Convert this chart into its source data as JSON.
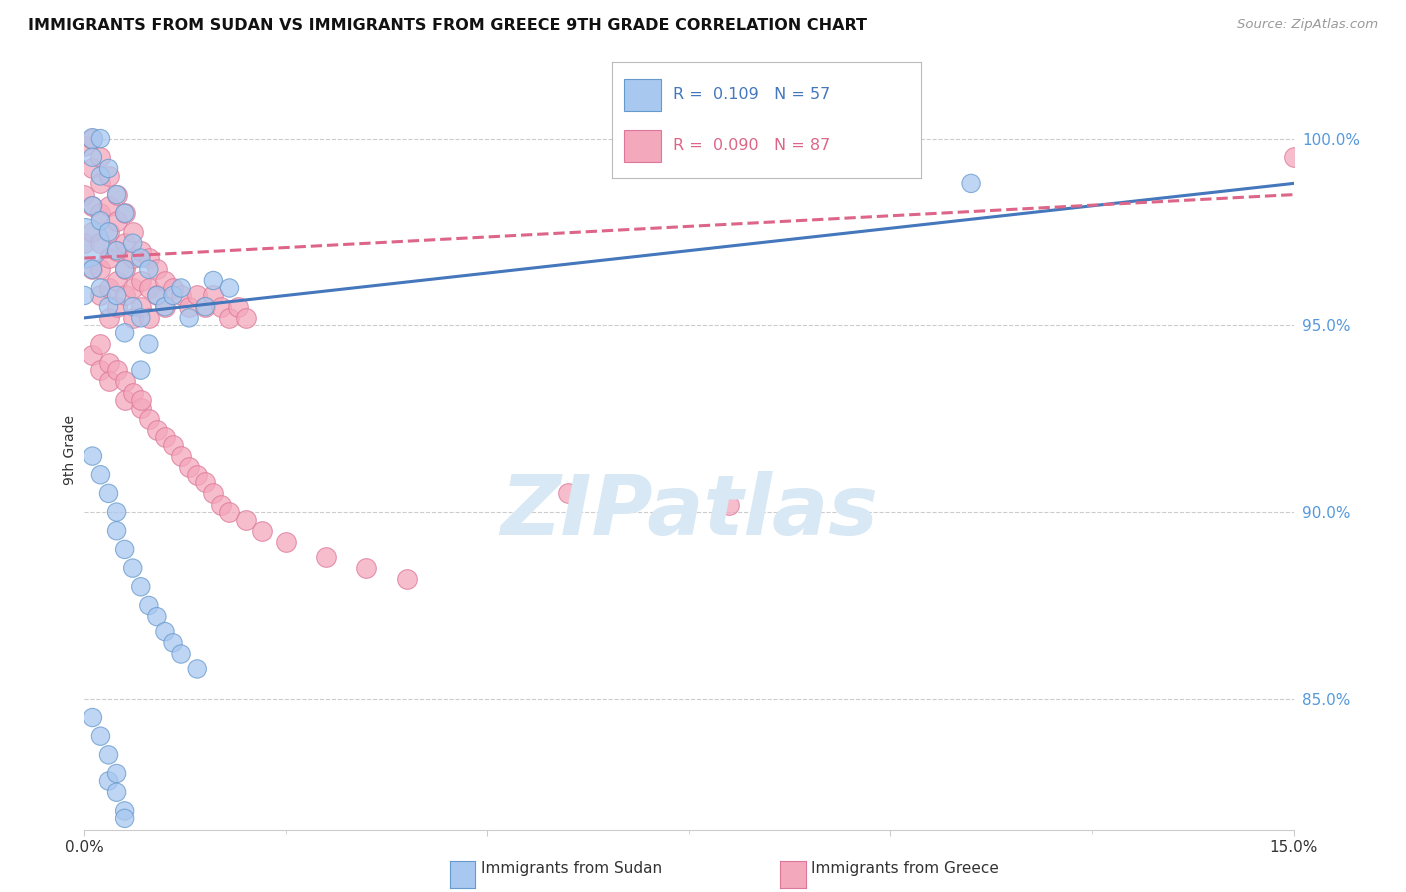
{
  "title": "IMMIGRANTS FROM SUDAN VS IMMIGRANTS FROM GREECE 9TH GRADE CORRELATION CHART",
  "source": "Source: ZipAtlas.com",
  "ylabel": "9th Grade",
  "x_min": 0.0,
  "x_max": 0.15,
  "y_min": 81.5,
  "y_max": 101.8,
  "sudan_color": "#A8C8F0",
  "greece_color": "#F4A8BC",
  "sudan_edge_color": "#6699CC",
  "greece_edge_color": "#DD7799",
  "sudan_line_color": "#4477BB",
  "greece_line_color": "#DD6688",
  "grid_color": "#CCCCCC",
  "watermark_color": "#D8E8F4",
  "right_tick_color": "#5599DD",
  "sudan_x": [
    0.0,
    0.0,
    0.001,
    0.001,
    0.001,
    0.001,
    0.002,
    0.002,
    0.002,
    0.002,
    0.003,
    0.003,
    0.003,
    0.004,
    0.004,
    0.004,
    0.005,
    0.005,
    0.005,
    0.006,
    0.006,
    0.007,
    0.007,
    0.007,
    0.008,
    0.008,
    0.009,
    0.01,
    0.011,
    0.012,
    0.013,
    0.015,
    0.016,
    0.018,
    0.001,
    0.002,
    0.003,
    0.004,
    0.004,
    0.005,
    0.006,
    0.007,
    0.008,
    0.009,
    0.01,
    0.011,
    0.012,
    0.014,
    0.001,
    0.002,
    0.003,
    0.003,
    0.004,
    0.004,
    0.005,
    0.005,
    0.11
  ],
  "sudan_y": [
    97.2,
    95.8,
    100.0,
    99.5,
    98.2,
    96.5,
    100.0,
    99.0,
    97.8,
    96.0,
    99.2,
    97.5,
    95.5,
    98.5,
    97.0,
    95.8,
    98.0,
    96.5,
    94.8,
    97.2,
    95.5,
    96.8,
    95.2,
    93.8,
    96.5,
    94.5,
    95.8,
    95.5,
    95.8,
    96.0,
    95.2,
    95.5,
    96.2,
    96.0,
    91.5,
    91.0,
    90.5,
    90.0,
    89.5,
    89.0,
    88.5,
    88.0,
    87.5,
    87.2,
    86.8,
    86.5,
    86.2,
    85.8,
    84.5,
    84.0,
    83.5,
    82.8,
    83.0,
    82.5,
    82.0,
    81.8,
    98.8
  ],
  "sudan_sizes": [
    180,
    25,
    30,
    25,
    25,
    25,
    25,
    25,
    25,
    25,
    25,
    25,
    25,
    25,
    25,
    25,
    25,
    25,
    25,
    25,
    25,
    25,
    25,
    25,
    25,
    25,
    25,
    25,
    25,
    25,
    25,
    25,
    25,
    25,
    25,
    25,
    25,
    25,
    25,
    25,
    25,
    25,
    25,
    25,
    25,
    25,
    25,
    25,
    25,
    25,
    25,
    25,
    25,
    25,
    25,
    25,
    25
  ],
  "greece_x": [
    0.0,
    0.0,
    0.0,
    0.001,
    0.001,
    0.001,
    0.001,
    0.001,
    0.002,
    0.002,
    0.002,
    0.002,
    0.002,
    0.002,
    0.003,
    0.003,
    0.003,
    0.003,
    0.003,
    0.003,
    0.004,
    0.004,
    0.004,
    0.004,
    0.004,
    0.005,
    0.005,
    0.005,
    0.005,
    0.006,
    0.006,
    0.006,
    0.006,
    0.007,
    0.007,
    0.007,
    0.008,
    0.008,
    0.008,
    0.009,
    0.009,
    0.01,
    0.01,
    0.011,
    0.012,
    0.013,
    0.014,
    0.015,
    0.016,
    0.017,
    0.018,
    0.019,
    0.02,
    0.001,
    0.002,
    0.002,
    0.003,
    0.003,
    0.004,
    0.005,
    0.005,
    0.006,
    0.007,
    0.007,
    0.008,
    0.009,
    0.01,
    0.011,
    0.012,
    0.013,
    0.014,
    0.015,
    0.016,
    0.017,
    0.018,
    0.02,
    0.022,
    0.025,
    0.03,
    0.035,
    0.04,
    0.06,
    0.08,
    0.15
  ],
  "greece_y": [
    99.8,
    98.5,
    97.2,
    100.0,
    99.2,
    98.2,
    97.5,
    96.5,
    99.5,
    98.8,
    98.0,
    97.2,
    96.5,
    95.8,
    99.0,
    98.2,
    97.5,
    96.8,
    96.0,
    95.2,
    98.5,
    97.8,
    97.0,
    96.2,
    95.5,
    98.0,
    97.2,
    96.5,
    95.8,
    97.5,
    96.8,
    96.0,
    95.2,
    97.0,
    96.2,
    95.5,
    96.8,
    96.0,
    95.2,
    96.5,
    95.8,
    96.2,
    95.5,
    96.0,
    95.8,
    95.5,
    95.8,
    95.5,
    95.8,
    95.5,
    95.2,
    95.5,
    95.2,
    94.2,
    94.5,
    93.8,
    94.0,
    93.5,
    93.8,
    93.5,
    93.0,
    93.2,
    92.8,
    93.0,
    92.5,
    92.2,
    92.0,
    91.8,
    91.5,
    91.2,
    91.0,
    90.8,
    90.5,
    90.2,
    90.0,
    89.8,
    89.5,
    89.2,
    88.8,
    88.5,
    88.2,
    90.5,
    90.2,
    99.5
  ]
}
